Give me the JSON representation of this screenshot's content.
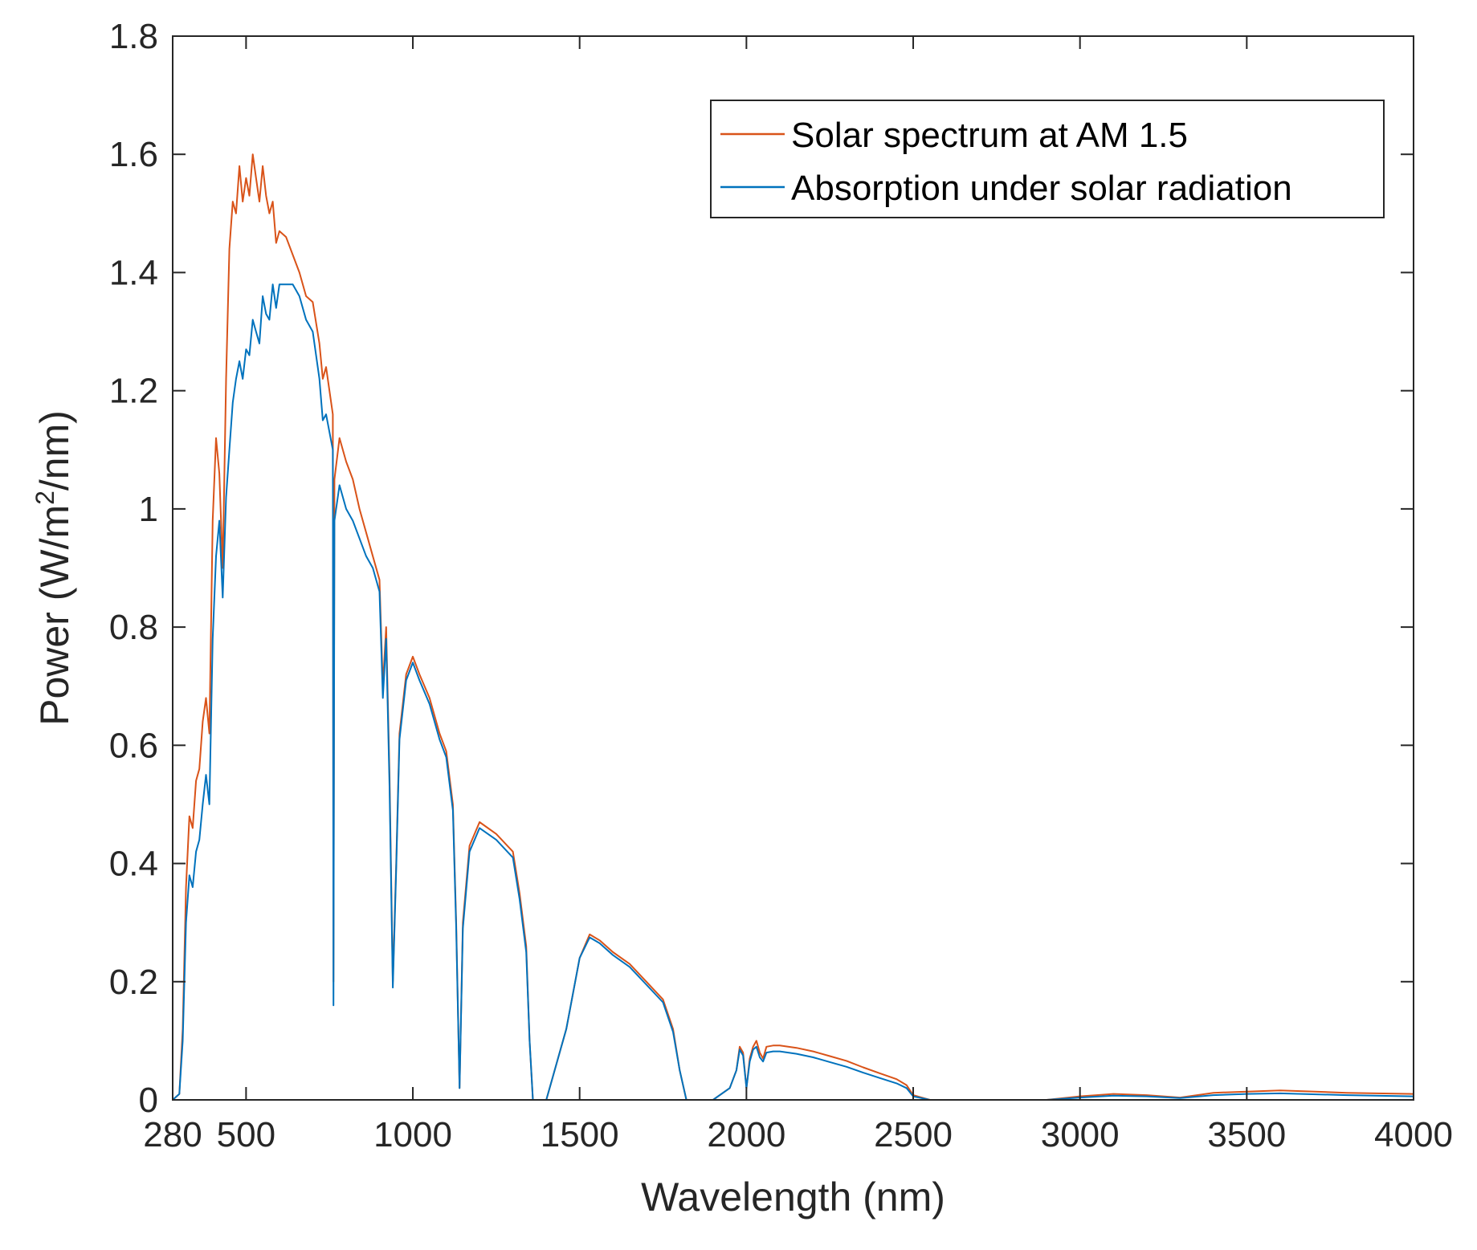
{
  "chart_data": {
    "type": "line",
    "title": "",
    "xlabel": "Wavelength (nm)",
    "ylabel_main": "Power (W/m",
    "ylabel_sup": "2",
    "ylabel_end": "/nm)",
    "xlim": [
      280,
      4000
    ],
    "ylim": [
      0,
      1.8
    ],
    "xticks": [
      280,
      500,
      1000,
      1500,
      2000,
      2500,
      3000,
      3500,
      4000
    ],
    "xtick_labels": [
      "280",
      "500",
      "1000",
      "1500",
      "2000",
      "2500",
      "3000",
      "3500",
      "4000"
    ],
    "yticks": [
      0,
      0.2,
      0.4,
      0.6,
      0.8,
      1,
      1.2,
      1.4,
      1.6,
      1.8
    ],
    "ytick_labels": [
      "0",
      "0.2",
      "0.4",
      "0.6",
      "0.8",
      "1",
      "1.2",
      "1.4",
      "1.6",
      "1.8"
    ],
    "grid": false,
    "legend_position": "top-right",
    "series": [
      {
        "name": "Solar spectrum at AM 1.5",
        "color": "#D95319",
        "x": [
          280,
          300,
          310,
          320,
          330,
          340,
          350,
          360,
          370,
          380,
          390,
          400,
          410,
          420,
          430,
          440,
          450,
          460,
          470,
          480,
          490,
          500,
          510,
          520,
          530,
          540,
          550,
          560,
          570,
          580,
          590,
          600,
          620,
          640,
          660,
          680,
          700,
          720,
          730,
          740,
          760,
          762,
          765,
          780,
          800,
          820,
          840,
          860,
          880,
          900,
          910,
          920,
          930,
          940,
          950,
          960,
          980,
          1000,
          1020,
          1050,
          1080,
          1100,
          1120,
          1130,
          1140,
          1150,
          1170,
          1200,
          1250,
          1300,
          1320,
          1340,
          1350,
          1360,
          1400,
          1420,
          1440,
          1460,
          1480,
          1500,
          1530,
          1560,
          1600,
          1650,
          1700,
          1750,
          1780,
          1800,
          1820,
          1850,
          1900,
          1950,
          1970,
          1980,
          1990,
          2000,
          2010,
          2020,
          2030,
          2040,
          2050,
          2060,
          2080,
          2100,
          2150,
          2200,
          2250,
          2300,
          2350,
          2400,
          2450,
          2480,
          2500,
          2550,
          2600,
          2700,
          2800,
          2900,
          3000,
          3100,
          3200,
          3300,
          3400,
          3500,
          3600,
          3800,
          4000
        ],
        "y": [
          0,
          0.01,
          0.12,
          0.36,
          0.48,
          0.46,
          0.54,
          0.56,
          0.64,
          0.68,
          0.62,
          0.98,
          1.12,
          1.06,
          0.9,
          1.22,
          1.44,
          1.52,
          1.5,
          1.58,
          1.52,
          1.56,
          1.53,
          1.6,
          1.56,
          1.52,
          1.58,
          1.53,
          1.5,
          1.52,
          1.45,
          1.47,
          1.46,
          1.43,
          1.4,
          1.36,
          1.35,
          1.28,
          1.22,
          1.24,
          1.16,
          0.2,
          1.05,
          1.12,
          1.08,
          1.05,
          1.0,
          0.96,
          0.92,
          0.88,
          0.7,
          0.8,
          0.55,
          0.2,
          0.4,
          0.62,
          0.72,
          0.75,
          0.72,
          0.68,
          0.62,
          0.59,
          0.5,
          0.3,
          0.02,
          0.3,
          0.43,
          0.47,
          0.45,
          0.42,
          0.35,
          0.26,
          0.1,
          0.0,
          0.0,
          0.04,
          0.08,
          0.12,
          0.18,
          0.24,
          0.28,
          0.27,
          0.25,
          0.23,
          0.2,
          0.17,
          0.12,
          0.05,
          0.0,
          0.0,
          0.0,
          0.02,
          0.05,
          0.09,
          0.08,
          0.02,
          0.07,
          0.09,
          0.1,
          0.08,
          0.07,
          0.09,
          0.092,
          0.092,
          0.088,
          0.082,
          0.074,
          0.066,
          0.055,
          0.045,
          0.035,
          0.025,
          0.008,
          0.0,
          0.0,
          0.0,
          0.0,
          0.0,
          0.006,
          0.01,
          0.008,
          0.004,
          0.012,
          0.014,
          0.016,
          0.012,
          0.01
        ]
      },
      {
        "name": "Absorption under solar radiation",
        "color": "#0072BD",
        "x": [
          280,
          300,
          310,
          320,
          330,
          340,
          350,
          360,
          370,
          380,
          390,
          400,
          410,
          420,
          430,
          440,
          450,
          460,
          470,
          480,
          490,
          500,
          510,
          520,
          530,
          540,
          550,
          560,
          570,
          580,
          590,
          600,
          620,
          640,
          660,
          680,
          700,
          720,
          730,
          740,
          760,
          762,
          765,
          780,
          800,
          820,
          840,
          860,
          880,
          900,
          910,
          920,
          930,
          940,
          950,
          960,
          980,
          1000,
          1020,
          1050,
          1080,
          1100,
          1120,
          1130,
          1140,
          1150,
          1170,
          1200,
          1250,
          1300,
          1320,
          1340,
          1350,
          1360,
          1400,
          1420,
          1440,
          1460,
          1480,
          1500,
          1530,
          1560,
          1600,
          1650,
          1700,
          1750,
          1780,
          1800,
          1820,
          1850,
          1900,
          1950,
          1970,
          1980,
          1990,
          2000,
          2010,
          2020,
          2030,
          2040,
          2050,
          2060,
          2080,
          2100,
          2150,
          2200,
          2250,
          2300,
          2350,
          2400,
          2450,
          2480,
          2500,
          2550,
          2600,
          2700,
          2800,
          2900,
          3000,
          3100,
          3200,
          3300,
          3400,
          3500,
          3600,
          3800,
          4000
        ],
        "y": [
          0,
          0.01,
          0.1,
          0.3,
          0.38,
          0.36,
          0.42,
          0.44,
          0.5,
          0.55,
          0.5,
          0.78,
          0.92,
          0.98,
          0.85,
          1.02,
          1.1,
          1.18,
          1.22,
          1.25,
          1.22,
          1.27,
          1.26,
          1.32,
          1.3,
          1.28,
          1.36,
          1.33,
          1.32,
          1.38,
          1.34,
          1.38,
          1.38,
          1.38,
          1.36,
          1.32,
          1.3,
          1.22,
          1.15,
          1.16,
          1.1,
          0.16,
          0.98,
          1.04,
          1.0,
          0.98,
          0.95,
          0.92,
          0.9,
          0.86,
          0.68,
          0.78,
          0.53,
          0.19,
          0.39,
          0.61,
          0.71,
          0.74,
          0.71,
          0.67,
          0.61,
          0.58,
          0.49,
          0.29,
          0.02,
          0.29,
          0.42,
          0.46,
          0.44,
          0.41,
          0.34,
          0.25,
          0.1,
          0.0,
          0.0,
          0.04,
          0.08,
          0.12,
          0.18,
          0.24,
          0.275,
          0.265,
          0.245,
          0.225,
          0.195,
          0.165,
          0.115,
          0.05,
          0.0,
          0.0,
          0.0,
          0.02,
          0.05,
          0.085,
          0.075,
          0.02,
          0.065,
          0.085,
          0.09,
          0.072,
          0.065,
          0.08,
          0.082,
          0.082,
          0.078,
          0.072,
          0.064,
          0.056,
          0.046,
          0.037,
          0.028,
          0.02,
          0.006,
          0.0,
          0.0,
          0.0,
          0.0,
          0.0,
          0.004,
          0.007,
          0.006,
          0.003,
          0.008,
          0.01,
          0.011,
          0.008,
          0.006
        ]
      }
    ]
  }
}
